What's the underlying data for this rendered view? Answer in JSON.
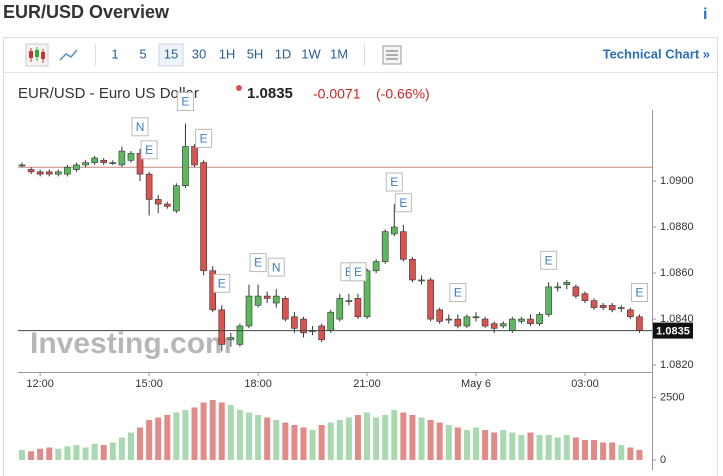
{
  "header": {
    "title": "EUR/USD Overview",
    "info": "i"
  },
  "toolbar": {
    "timeframes": [
      "1",
      "5",
      "15",
      "30",
      "1H",
      "5H",
      "1D",
      "1W",
      "1M"
    ],
    "selected": "15",
    "link": "Technical Chart »"
  },
  "chart_data": {
    "type": "candlestick",
    "title": "EUR/USD - Euro US Dollar",
    "price": 1.0835,
    "change": -0.0071,
    "change_percent": "(-0.66%)",
    "watermark": "Investing.com",
    "reference_line": 1.0906,
    "up_color": "#5cb85c",
    "down_color": "#d9534f",
    "volume_up_color": "#a9d9b1",
    "volume_down_color": "#e08b88",
    "categories": [
      null,
      null,
      "12:00",
      null,
      null,
      null,
      null,
      null,
      null,
      null,
      null,
      null,
      null,
      null,
      "15:00",
      null,
      null,
      null,
      null,
      null,
      null,
      null,
      null,
      null,
      null,
      null,
      "18:00",
      null,
      null,
      null,
      null,
      null,
      null,
      null,
      null,
      null,
      null,
      null,
      "21:00",
      null,
      null,
      null,
      null,
      null,
      null,
      null,
      null,
      null,
      null,
      null,
      "May 6",
      null,
      null,
      null,
      null,
      null,
      null,
      null,
      null,
      null,
      null,
      null,
      "03:00",
      null,
      null,
      null,
      null,
      null,
      null
    ],
    "open": [
      1.0907,
      1.0905,
      1.0904,
      1.0904,
      1.0903,
      1.0903,
      1.0905,
      1.0907,
      1.0908,
      1.0909,
      1.0908,
      1.0907,
      1.0909,
      1.0912,
      1.0903,
      1.0892,
      1.089,
      1.0887,
      1.0898,
      1.0915,
      1.0908,
      1.0861,
      1.0844,
      1.0831,
      1.0829,
      1.0837,
      1.0846,
      1.085,
      1.0847,
      1.0849,
      1.0841,
      1.084,
      1.0835,
      1.0837,
      1.0835,
      1.084,
      1.0848,
      1.0849,
      1.0841,
      1.0861,
      1.0865,
      1.0877,
      1.0878,
      1.0866,
      1.0857,
      1.0857,
      1.0844,
      1.084,
      1.084,
      1.0837,
      1.0841,
      1.084,
      1.0838,
      1.0837,
      1.0835,
      1.0839,
      1.084,
      1.0838,
      1.0842,
      1.0854,
      1.0855,
      1.0854,
      1.0851,
      1.0848,
      1.0846,
      1.0846,
      1.0845,
      1.0844,
      1.0841
    ],
    "high": [
      1.0908,
      1.0906,
      1.0905,
      1.0905,
      1.0905,
      1.0907,
      1.0908,
      1.0909,
      1.0911,
      1.091,
      1.0909,
      1.0915,
      1.0913,
      1.0914,
      1.0904,
      1.0894,
      1.0891,
      1.0899,
      1.0925,
      1.0916,
      1.0909,
      1.0863,
      1.0846,
      1.0834,
      1.0838,
      1.0855,
      1.0855,
      1.0852,
      1.0853,
      1.085,
      1.0843,
      1.0841,
      1.0837,
      1.0838,
      1.0844,
      1.0851,
      1.0851,
      1.0851,
      1.0862,
      1.0866,
      1.0879,
      1.089,
      1.0881,
      1.0867,
      1.0859,
      1.0858,
      1.0845,
      1.0842,
      1.0842,
      1.0842,
      1.0843,
      1.0841,
      1.0839,
      1.0839,
      1.0841,
      1.0841,
      1.0842,
      1.0843,
      1.0856,
      1.0856,
      1.0857,
      1.0855,
      1.0852,
      1.0849,
      1.0847,
      1.0847,
      1.0846,
      1.0845,
      1.0842
    ],
    "low": [
      1.0906,
      1.0903,
      1.0902,
      1.0902,
      1.0902,
      1.0902,
      1.0904,
      1.0906,
      1.0907,
      1.0907,
      1.0907,
      1.0906,
      1.0908,
      1.09,
      1.0885,
      1.0886,
      1.0888,
      1.0886,
      1.0897,
      1.0906,
      1.0859,
      1.0843,
      1.0826,
      1.0828,
      1.0828,
      1.0836,
      1.0845,
      1.0847,
      1.0845,
      1.0839,
      1.0834,
      1.0832,
      1.0833,
      1.083,
      1.0834,
      1.0839,
      1.0846,
      1.084,
      1.084,
      1.086,
      1.0864,
      1.0876,
      1.0865,
      1.0856,
      1.0855,
      1.0839,
      1.0838,
      1.0838,
      1.0836,
      1.0836,
      1.0839,
      1.0836,
      1.0834,
      1.0836,
      1.0834,
      1.0838,
      1.0837,
      1.0837,
      1.0841,
      1.0852,
      1.0853,
      1.0849,
      1.0847,
      1.0844,
      1.0844,
      1.0843,
      1.0843,
      1.084,
      1.0834
    ],
    "close": [
      1.0907,
      1.0904,
      1.0903,
      1.0903,
      1.0904,
      1.0906,
      1.0907,
      1.0908,
      1.091,
      1.0908,
      1.0908,
      1.0913,
      1.0912,
      1.0903,
      1.0892,
      1.089,
      1.0889,
      1.0898,
      1.0915,
      1.0907,
      1.0861,
      1.0844,
      1.0829,
      1.0832,
      1.0837,
      1.085,
      1.085,
      1.0849,
      1.085,
      1.084,
      1.0836,
      1.0834,
      1.0835,
      1.0831,
      1.0843,
      1.0849,
      1.0848,
      1.0841,
      1.0861,
      1.0865,
      1.0878,
      1.088,
      1.0866,
      1.0857,
      1.0857,
      1.084,
      1.0839,
      1.084,
      1.0837,
      1.0841,
      1.0841,
      1.0837,
      1.0836,
      1.0838,
      1.084,
      1.084,
      1.0838,
      1.0842,
      1.0854,
      1.0854,
      1.0856,
      1.085,
      1.0848,
      1.0845,
      1.0845,
      1.0844,
      1.0845,
      1.0841,
      1.0835
    ],
    "volume": [
      400,
      350,
      450,
      500,
      450,
      550,
      600,
      500,
      650,
      600,
      700,
      900,
      1100,
      1300,
      1600,
      1700,
      1800,
      1900,
      2000,
      2100,
      2300,
      2400,
      2300,
      2200,
      2000,
      1900,
      1800,
      1700,
      1600,
      1500,
      1400,
      1300,
      1200,
      1400,
      1500,
      1600,
      1700,
      1800,
      1900,
      1700,
      1800,
      2000,
      1900,
      1800,
      1700,
      1600,
      1500,
      1400,
      1300,
      1200,
      1300,
      1200,
      1100,
      1200,
      1100,
      1000,
      1100,
      1000,
      1000,
      900,
      1000,
      900,
      800,
      800,
      700,
      700,
      600,
      500,
      400
    ],
    "ylim": [
      1.0817,
      1.093
    ],
    "yticks": [
      {
        "value": 1.09,
        "label": "1.0900"
      },
      {
        "value": 1.088,
        "label": "1.0880"
      },
      {
        "value": 1.086,
        "label": "1.0860"
      },
      {
        "value": 1.084,
        "label": "1.0840"
      },
      {
        "value": 1.082,
        "label": "1.0820"
      }
    ],
    "volume_ylim": [
      0,
      2600
    ],
    "volume_ticks": [
      0,
      2500
    ],
    "markers": [
      {
        "label": "N",
        "at": 13
      },
      {
        "label": "E",
        "at": 14
      },
      {
        "label": "E",
        "at": 18
      },
      {
        "label": "E",
        "at": 20
      },
      {
        "label": "E",
        "at": 22
      },
      {
        "label": "E",
        "at": 26
      },
      {
        "label": "N",
        "at": 28
      },
      {
        "label": "E",
        "at": 36
      },
      {
        "label": "E",
        "at": 37
      },
      {
        "label": "E",
        "at": 41
      },
      {
        "label": "E",
        "at": 42
      },
      {
        "label": "E",
        "at": 48
      },
      {
        "label": "E",
        "at": 58
      },
      {
        "label": "E",
        "at": 68
      }
    ]
  }
}
